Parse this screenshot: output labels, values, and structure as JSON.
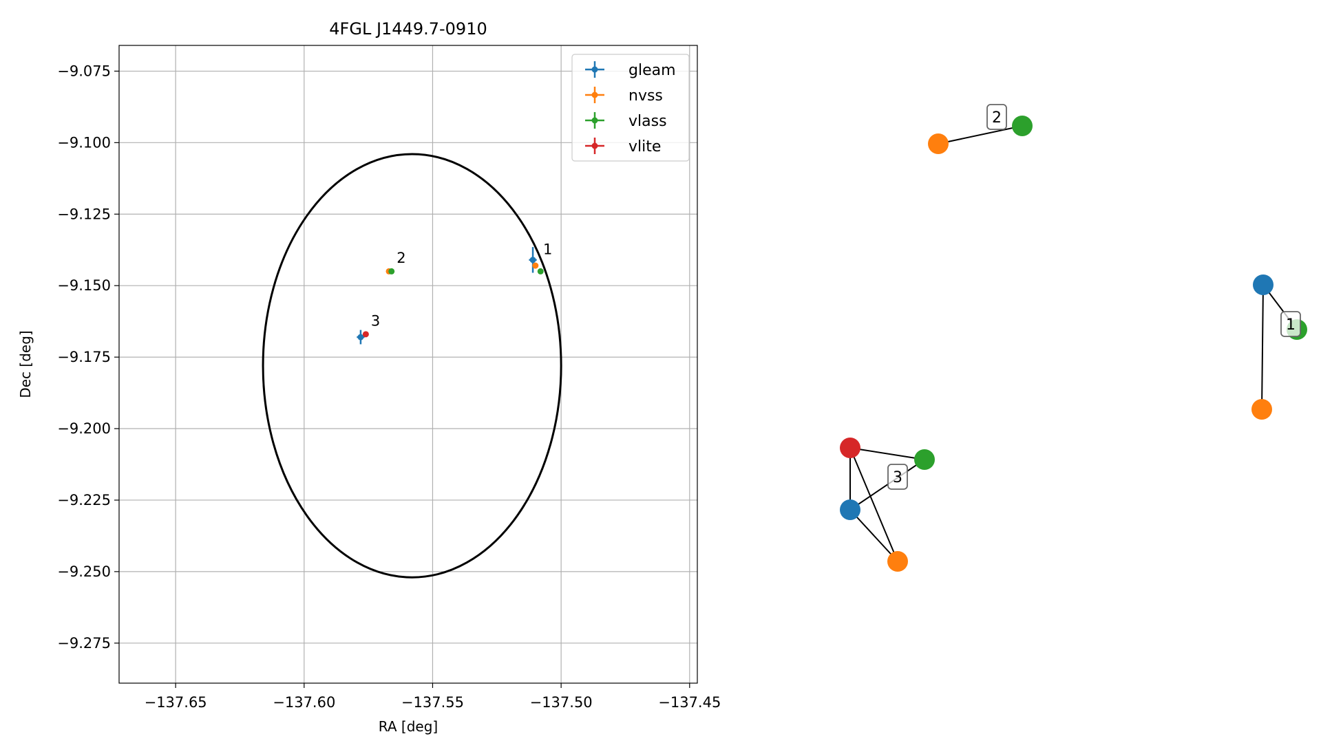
{
  "chart_data": [
    {
      "type": "scatter",
      "title": "4FGL J1449.7-0910",
      "xlabel": "RA [deg]",
      "ylabel": "Dec [deg]",
      "xlim": [
        -137.672,
        -137.447
      ],
      "ylim": [
        -9.289,
        -9.066
      ],
      "xticks": [
        -137.65,
        -137.6,
        -137.55,
        -137.5,
        -137.45
      ],
      "xtick_labels": [
        "−137.65",
        "−137.60",
        "−137.55",
        "−137.50",
        "−137.45"
      ],
      "yticks": [
        -9.075,
        -9.1,
        -9.125,
        -9.15,
        -9.175,
        -9.2,
        -9.225,
        -9.25,
        -9.275
      ],
      "ytick_labels": [
        "−9.075",
        "−9.100",
        "−9.125",
        "−9.150",
        "−9.175",
        "−9.200",
        "−9.225",
        "−9.250",
        "−9.275"
      ],
      "grid": true,
      "legend_position": "top-right",
      "ellipse": {
        "center": [
          -137.558,
          -9.178
        ],
        "semi_axis_ra": 0.058,
        "semi_axis_dec": 0.074,
        "color": "#000000"
      },
      "series": [
        {
          "name": "gleam",
          "color": "#1f77b4",
          "points": [
            {
              "x": -137.511,
              "y": -9.141,
              "xerr": 0.0015,
              "yerr": 0.0045
            },
            {
              "x": -137.578,
              "y": -9.168,
              "xerr": 0.0015,
              "yerr": 0.0025
            }
          ]
        },
        {
          "name": "nvss",
          "color": "#ff7f0e",
          "points": [
            {
              "x": -137.51,
              "y": -9.143,
              "xerr": 0.0008,
              "yerr": 0.001
            },
            {
              "x": -137.567,
              "y": -9.145,
              "xerr": 0.0005,
              "yerr": 0.0005
            }
          ]
        },
        {
          "name": "vlass",
          "color": "#2ca02c",
          "points": [
            {
              "x": -137.508,
              "y": -9.145,
              "xerr": 0.0002,
              "yerr": 0.0002
            },
            {
              "x": -137.566,
              "y": -9.145,
              "xerr": 0.0002,
              "yerr": 0.0002
            }
          ]
        },
        {
          "name": "vlite",
          "color": "#d62728",
          "points": [
            {
              "x": -137.576,
              "y": -9.167,
              "xerr": 0.0005,
              "yerr": 0.0005
            }
          ]
        }
      ],
      "annotations": [
        {
          "text": "1",
          "x": -137.507,
          "y": -9.139
        },
        {
          "text": "2",
          "x": -137.564,
          "y": -9.142
        },
        {
          "text": "3",
          "x": -137.574,
          "y": -9.164
        }
      ]
    },
    {
      "type": "network",
      "nodes": [
        {
          "id": "g1",
          "color": "#1f77b4"
        },
        {
          "id": "v1",
          "color": "#2ca02c"
        },
        {
          "id": "n1",
          "color": "#ff7f0e"
        },
        {
          "id": "n2",
          "color": "#ff7f0e"
        },
        {
          "id": "v2",
          "color": "#2ca02c"
        },
        {
          "id": "r3",
          "color": "#d62728"
        },
        {
          "id": "v3",
          "color": "#2ca02c"
        },
        {
          "id": "g3",
          "color": "#1f77b4"
        },
        {
          "id": "n3",
          "color": "#ff7f0e"
        }
      ],
      "edges": [
        [
          "g1",
          "v1"
        ],
        [
          "g1",
          "n1"
        ],
        [
          "n2",
          "v2"
        ],
        [
          "r3",
          "v3"
        ],
        [
          "r3",
          "g3"
        ],
        [
          "r3",
          "n3"
        ],
        [
          "g3",
          "n3"
        ],
        [
          "g3",
          "v3"
        ]
      ],
      "cluster_labels": [
        "1",
        "2",
        "3"
      ]
    }
  ]
}
